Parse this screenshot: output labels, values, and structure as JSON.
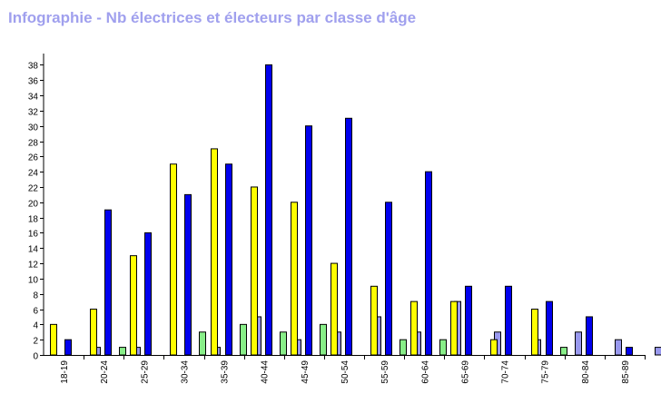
{
  "title": "Infographie - Nb électrices et électeurs par classe d'âge",
  "colors": {
    "title": "#a0a0ee",
    "series": [
      "#ffff00",
      "#0000ee",
      "#88ee88",
      "#9999ee"
    ],
    "axis": "#000000"
  },
  "chart_data": {
    "type": "bar",
    "title": "Infographie - Nb électrices et électeurs par classe d'âge",
    "xlabel": "",
    "ylabel": "",
    "ylim": [
      0,
      39
    ],
    "yticks": [
      0,
      2,
      4,
      6,
      8,
      10,
      12,
      14,
      16,
      18,
      20,
      22,
      24,
      26,
      28,
      30,
      32,
      34,
      36,
      38
    ],
    "grid": false,
    "legend": "none",
    "categories": [
      "18-19",
      "20-24",
      "25-29",
      "30-34",
      "35-39",
      "40-44",
      "45-49",
      "50-54",
      "55-59",
      "60-64",
      "65-69",
      "70-74",
      "75-79",
      "80-84",
      "85-89"
    ],
    "series": [
      {
        "color": "#ffff00",
        "values": [
          4,
          6,
          13,
          25,
          27,
          22,
          20,
          12,
          9,
          7,
          7,
          2,
          6,
          0,
          0
        ]
      },
      {
        "color": "#0000ee",
        "values": [
          2,
          19,
          16,
          21,
          25,
          38,
          30,
          31,
          20,
          24,
          9,
          9,
          7,
          5,
          1
        ]
      },
      {
        "color": "#88ee88",
        "values": [
          0,
          1,
          0,
          3,
          4,
          3,
          4,
          0,
          2,
          2,
          0,
          0,
          1,
          0,
          0
        ]
      },
      {
        "color": "#9999ee",
        "values": [
          1,
          1,
          0,
          1,
          5,
          2,
          3,
          5,
          3,
          7,
          3,
          2,
          3,
          2,
          1
        ]
      }
    ]
  }
}
